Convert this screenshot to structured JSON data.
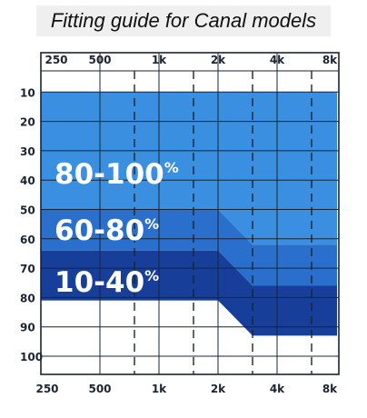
{
  "title": "Fitting guide for Canal models",
  "chart_data": {
    "type": "area",
    "x_categories": [
      "250",
      "500",
      "1k",
      "2k",
      "4k",
      "8k"
    ],
    "x_midpoints": [
      "750",
      "1.5k",
      "3k",
      "6k"
    ],
    "y_ticks": [
      "10",
      "20",
      "30",
      "40",
      "50",
      "60",
      "70",
      "80",
      "90",
      "100"
    ],
    "y_range_db": [
      0,
      110
    ],
    "grid": true,
    "zones": [
      {
        "name": "80-100%",
        "main": "80-100",
        "sup": "%",
        "color": "#3a8fe0",
        "upper_db": [
          10,
          10,
          10,
          10,
          10,
          10,
          10,
          10,
          10,
          10,
          10
        ],
        "lower_db": [
          50,
          50,
          50,
          50,
          50,
          50,
          50,
          62,
          62,
          62,
          62
        ]
      },
      {
        "name": "60-80%",
        "main": "60-80",
        "sup": "%",
        "color": "#2a6fcc",
        "upper_db": [
          50,
          50,
          50,
          50,
          50,
          50,
          50,
          62,
          62,
          62,
          62
        ],
        "lower_db": [
          64,
          64,
          64,
          64,
          64,
          64,
          64,
          76,
          76,
          76,
          76
        ]
      },
      {
        "name": "10-40%",
        "main": "10-40",
        "sup": "%",
        "color": "#173f9a",
        "upper_db": [
          64,
          64,
          64,
          64,
          64,
          64,
          64,
          76,
          76,
          76,
          76
        ],
        "lower_db": [
          81,
          81,
          81,
          81,
          81,
          81,
          81,
          93,
          93,
          93,
          93
        ]
      }
    ],
    "zone_x_frequencies_hz": [
      250,
      500,
      750,
      1000,
      1500,
      1760,
      2000,
      3000,
      4000,
      6000,
      8000
    ],
    "colors": {
      "grid_solid": "#1b2430",
      "grid_dashed": "#1b2430",
      "frame": "#1b2430"
    }
  }
}
